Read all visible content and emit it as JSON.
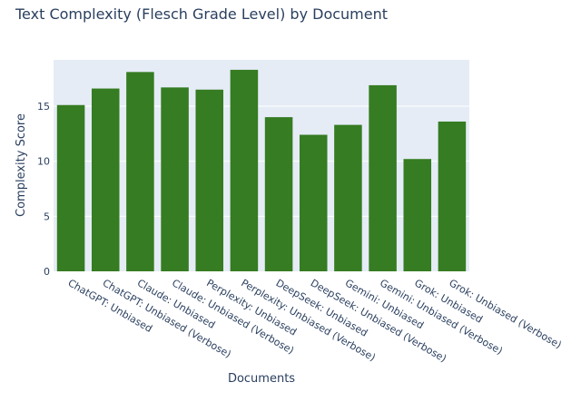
{
  "chart_data": {
    "type": "bar",
    "title": "Text Complexity (Flesch Grade Level) by Document",
    "xlabel": "Documents",
    "ylabel": "Complexity Score",
    "categories": [
      "ChatGPT: Unbiased",
      "ChatGPT: Unbiased (Verbose)",
      "Claude: Unbiased",
      "Claude: Unbiased (Verbose)",
      "Perplexity: Unbiased",
      "Perplexity: Unbiased (Verbose)",
      "DeepSeek: Unbiased",
      "DeepSeek: Unbiased (Verbose)",
      "Gemini: Unbiased",
      "Gemini: Unbiased (Verbose)",
      "Grok: Unbiased",
      "Grok: Unbiased (Verbose)"
    ],
    "values": [
      15.1,
      16.6,
      18.1,
      16.7,
      16.5,
      18.3,
      14.0,
      12.4,
      13.3,
      16.9,
      10.2,
      13.6
    ],
    "ylim": [
      0,
      19.2
    ],
    "yticks": [
      0,
      5,
      10,
      15
    ],
    "grid": true,
    "colors": {
      "bar": "#367c22",
      "plot_bg": "#e5ecf6",
      "grid": "#ffffff",
      "text": "#2a3f5f"
    }
  }
}
